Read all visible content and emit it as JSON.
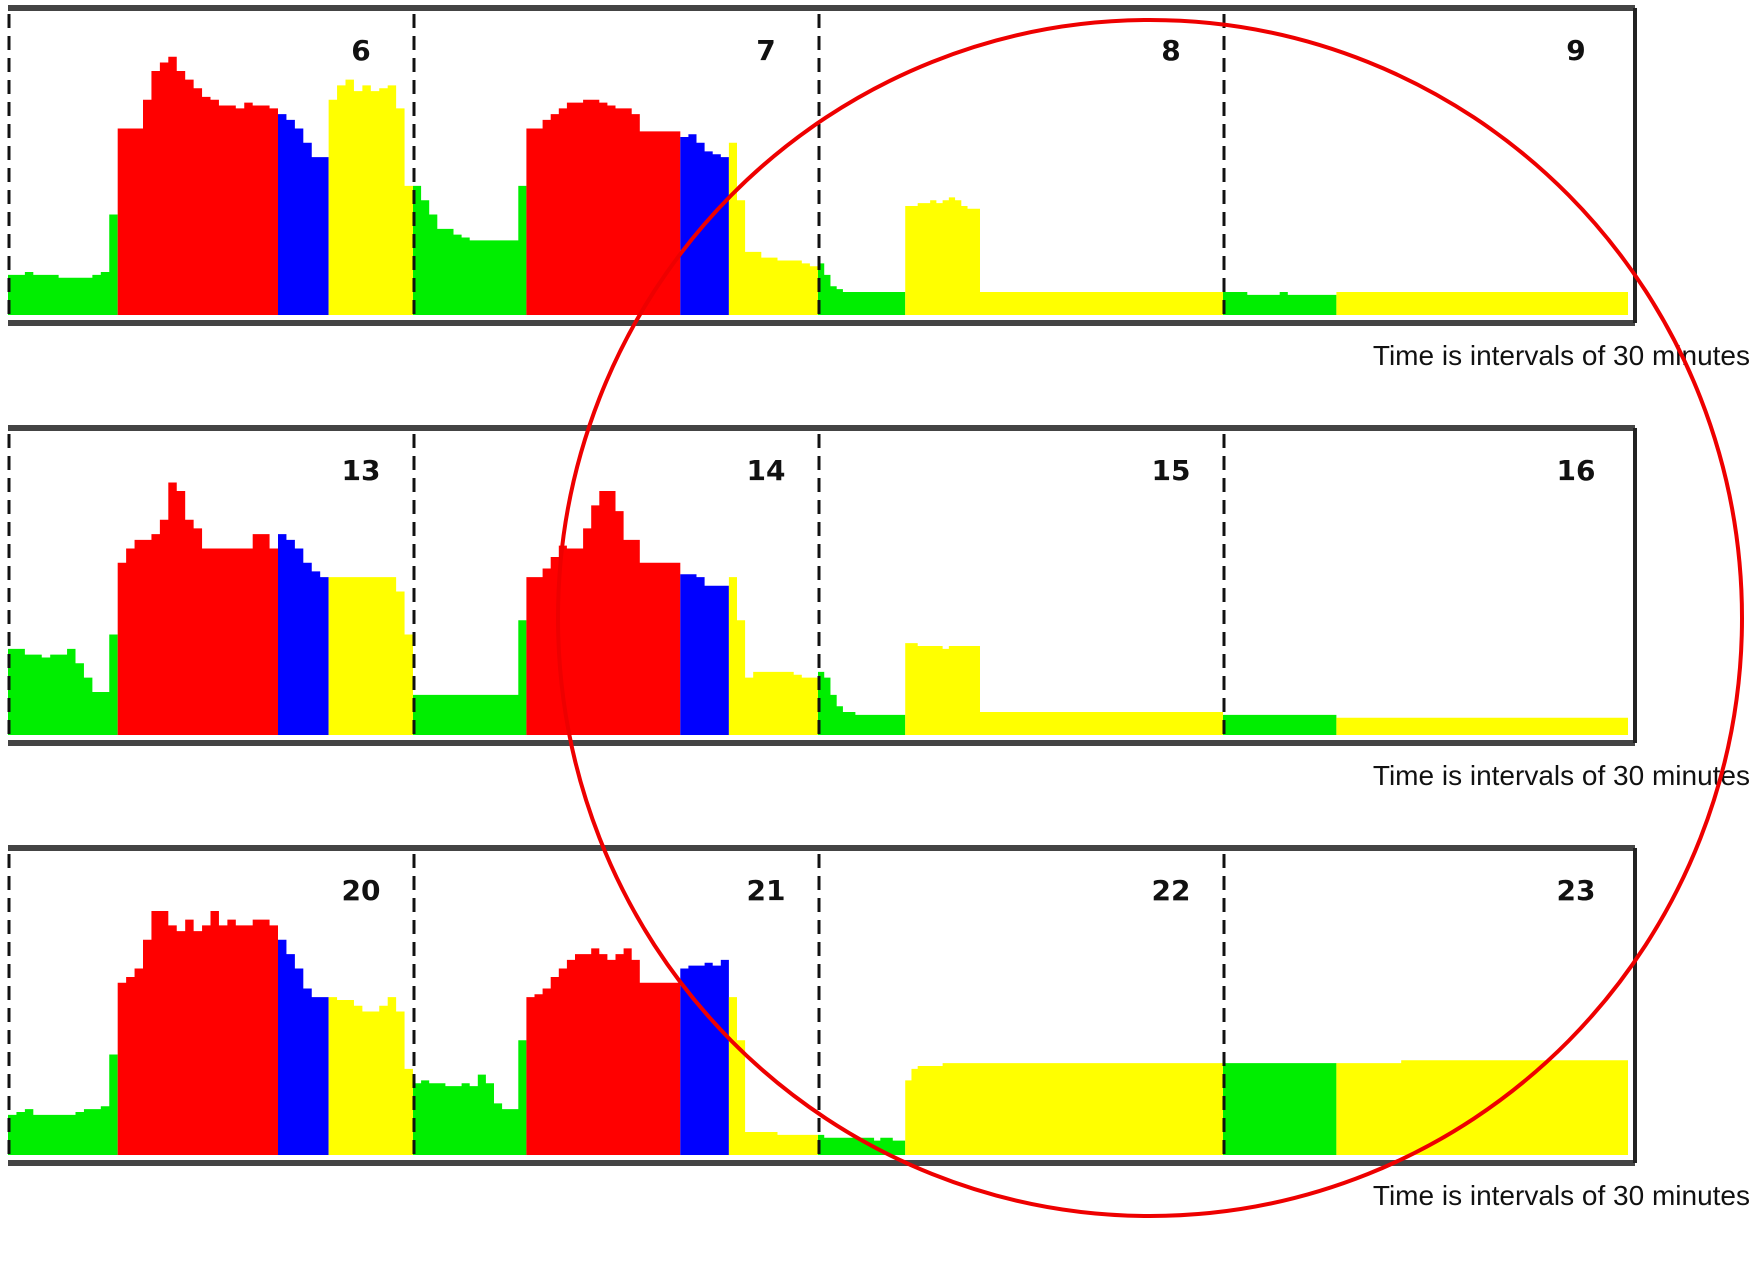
{
  "colors": {
    "green": "#00ee00",
    "red": "#ff0000",
    "blue": "#0000ff",
    "yellow": "#ffff00",
    "frame": "#444444",
    "annotation": "#ee0000"
  },
  "caption": "Time is intervals of 30 minutes",
  "annotation": "red circle highlighting the later days of each week",
  "chart_data": [
    {
      "type": "area",
      "panel_labels": [
        "6",
        "7",
        "8",
        "9"
      ],
      "x_unit": "30-minute intervals",
      "y_range": [
        0,
        100
      ],
      "grid": false,
      "days": [
        {
          "label": "6",
          "segments": [
            {
              "color": "green",
              "values": [
                14,
                14,
                15,
                14,
                14,
                14,
                13,
                13,
                13,
                13,
                14,
                15,
                35
              ]
            },
            {
              "color": "red",
              "values": [
                65,
                65,
                65,
                75,
                85,
                88,
                90,
                85,
                82,
                79,
                76,
                75,
                73,
                73,
                72,
                74,
                73,
                73,
                72
              ]
            },
            {
              "color": "blue",
              "values": [
                70,
                68,
                65,
                60,
                55,
                55
              ]
            },
            {
              "color": "yellow",
              "values": [
                75,
                80,
                82,
                78,
                80,
                78,
                79,
                80,
                72,
                45
              ]
            }
          ]
        },
        {
          "label": "7",
          "segments": [
            {
              "color": "green",
              "values": [
                45,
                40,
                35,
                30,
                30,
                28,
                27,
                26,
                26,
                26,
                26,
                26,
                26,
                45
              ]
            },
            {
              "color": "red",
              "values": [
                65,
                65,
                68,
                70,
                72,
                74,
                74,
                75,
                75,
                74,
                73,
                72,
                72,
                70,
                64,
                64,
                64,
                64,
                64
              ]
            },
            {
              "color": "blue",
              "values": [
                62,
                63,
                60,
                57,
                56,
                55
              ]
            },
            {
              "color": "yellow",
              "values": [
                60,
                40,
                22,
                22,
                20,
                20,
                19,
                19,
                19,
                18,
                17
              ]
            }
          ]
        },
        {
          "label": "8",
          "segments": [
            {
              "color": "green",
              "values": [
                18,
                14,
                10,
                9,
                8,
                8,
                8,
                8,
                8,
                8,
                8,
                8,
                8,
                8
              ]
            },
            {
              "color": "yellow",
              "values": [
                38,
                38,
                39,
                39,
                40,
                39,
                40,
                41,
                40,
                38,
                37,
                37,
                8,
                8,
                8,
                8,
                8,
                8,
                8,
                8,
                8,
                8,
                8,
                8,
                8,
                8,
                8,
                8,
                8,
                8,
                8,
                8,
                8,
                8,
                8,
                8,
                8,
                8,
                8,
                8,
                8,
                8,
                8,
                8,
                8,
                8,
                8,
                8,
                8,
                8,
                8
              ]
            }
          ]
        },
        {
          "label": "9",
          "segments": [
            {
              "color": "green",
              "values": [
                8,
                8,
                8,
                7,
                7,
                7,
                7,
                8,
                7,
                7,
                7,
                7,
                7,
                7
              ]
            },
            {
              "color": "yellow",
              "values": [
                8,
                8,
                8,
                8,
                8,
                8,
                8,
                8,
                8,
                8,
                8,
                8,
                8,
                8,
                8,
                8,
                8,
                8,
                8,
                8,
                8,
                8,
                8,
                8,
                8,
                8,
                8,
                8,
                8,
                8,
                8,
                8,
                8,
                8,
                8,
                8
              ]
            }
          ]
        }
      ]
    },
    {
      "type": "area",
      "panel_labels": [
        "13",
        "14",
        "15",
        "16"
      ],
      "x_unit": "30-minute intervals",
      "y_range": [
        0,
        100
      ],
      "grid": false,
      "days": [
        {
          "label": "13",
          "segments": [
            {
              "color": "green",
              "values": [
                30,
                30,
                28,
                28,
                27,
                28,
                28,
                30,
                25,
                20,
                15,
                15,
                35
              ]
            },
            {
              "color": "red",
              "values": [
                60,
                65,
                68,
                68,
                70,
                75,
                88,
                85,
                75,
                72,
                65,
                65,
                65,
                65,
                65,
                65,
                70,
                70,
                65
              ]
            },
            {
              "color": "blue",
              "values": [
                70,
                68,
                65,
                60,
                57,
                55
              ]
            },
            {
              "color": "yellow",
              "values": [
                55,
                55,
                55,
                55,
                55,
                55,
                55,
                55,
                50,
                35
              ]
            }
          ]
        },
        {
          "label": "14",
          "segments": [
            {
              "color": "green",
              "values": [
                14,
                14,
                14,
                14,
                14,
                14,
                14,
                14,
                14,
                14,
                14,
                14,
                14,
                40
              ]
            },
            {
              "color": "red",
              "values": [
                55,
                55,
                58,
                62,
                66,
                65,
                65,
                72,
                80,
                85,
                85,
                78,
                68,
                68,
                60,
                60,
                60,
                60,
                60
              ]
            },
            {
              "color": "blue",
              "values": [
                56,
                56,
                55,
                52,
                52,
                52
              ]
            },
            {
              "color": "yellow",
              "values": [
                55,
                40,
                20,
                22,
                22,
                22,
                22,
                22,
                21,
                20,
                20
              ]
            }
          ]
        },
        {
          "label": "15",
          "segments": [
            {
              "color": "green",
              "values": [
                22,
                20,
                14,
                10,
                8,
                8,
                7,
                7,
                7,
                7,
                7,
                7,
                7,
                7
              ]
            },
            {
              "color": "yellow",
              "values": [
                32,
                32,
                31,
                31,
                31,
                31,
                30,
                31,
                31,
                31,
                31,
                31,
                8,
                8,
                8,
                8,
                8,
                8,
                8,
                8,
                8,
                8,
                8,
                8,
                8,
                8,
                8,
                8,
                8,
                8,
                8,
                8,
                8,
                8,
                8,
                8,
                8,
                8,
                8,
                8,
                8,
                8,
                8,
                8,
                8,
                8,
                8,
                8,
                8,
                8,
                8
              ]
            }
          ]
        },
        {
          "label": "16",
          "segments": [
            {
              "color": "green",
              "values": [
                7,
                7,
                7,
                7,
                7,
                7,
                7,
                7,
                7,
                7,
                7,
                7,
                7,
                7
              ]
            },
            {
              "color": "yellow",
              "values": [
                6,
                6,
                6,
                6,
                6,
                6,
                6,
                6,
                6,
                6,
                6,
                6,
                6,
                6,
                6,
                6,
                6,
                6,
                6,
                6,
                6,
                6,
                6,
                6,
                6,
                6,
                6,
                6,
                6,
                6,
                6,
                6,
                6,
                6,
                6,
                6
              ]
            }
          ]
        }
      ]
    },
    {
      "type": "area",
      "panel_labels": [
        "20",
        "21",
        "22",
        "23"
      ],
      "x_unit": "30-minute intervals",
      "y_range": [
        0,
        100
      ],
      "grid": false,
      "days": [
        {
          "label": "20",
          "segments": [
            {
              "color": "green",
              "values": [
                14,
                15,
                16,
                14,
                14,
                14,
                14,
                14,
                15,
                16,
                16,
                17,
                35
              ]
            },
            {
              "color": "red",
              "values": [
                60,
                62,
                65,
                75,
                85,
                85,
                80,
                78,
                82,
                78,
                80,
                85,
                80,
                82,
                80,
                80,
                82,
                82,
                80
              ]
            },
            {
              "color": "blue",
              "values": [
                75,
                70,
                65,
                58,
                55,
                55
              ]
            },
            {
              "color": "yellow",
              "values": [
                55,
                54,
                54,
                52,
                50,
                50,
                52,
                55,
                50,
                30
              ]
            }
          ]
        },
        {
          "label": "21",
          "segments": [
            {
              "color": "green",
              "values": [
                25,
                26,
                25,
                25,
                24,
                24,
                25,
                24,
                28,
                25,
                18,
                16,
                16,
                40
              ]
            },
            {
              "color": "red",
              "values": [
                55,
                56,
                58,
                62,
                65,
                68,
                70,
                70,
                72,
                70,
                68,
                70,
                72,
                68,
                60,
                60,
                60,
                60,
                60
              ]
            },
            {
              "color": "blue",
              "values": [
                65,
                66,
                66,
                67,
                66,
                68
              ]
            },
            {
              "color": "yellow",
              "values": [
                55,
                40,
                8,
                8,
                8,
                8,
                7,
                7,
                7,
                7,
                7
              ]
            }
          ]
        },
        {
          "label": "22",
          "segments": [
            {
              "color": "green",
              "values": [
                7,
                6,
                6,
                6,
                6,
                6,
                6,
                6,
                6,
                5,
                6,
                6,
                5,
                5
              ]
            },
            {
              "color": "yellow",
              "values": [
                26,
                30,
                31,
                31,
                31,
                31,
                32,
                32,
                32,
                32,
                32,
                32,
                32,
                32,
                32,
                32,
                32,
                32,
                32,
                32,
                32,
                32,
                32,
                32,
                32,
                32,
                32,
                32,
                32,
                32,
                32,
                32,
                32,
                32,
                32,
                32,
                32,
                32,
                32,
                32,
                32,
                32,
                32,
                32,
                32,
                32,
                32,
                32,
                32,
                32,
                32
              ]
            }
          ]
        },
        {
          "label": "23",
          "segments": [
            {
              "color": "green",
              "values": [
                32,
                32,
                32,
                32,
                32,
                32,
                32,
                32,
                32,
                32,
                32,
                32,
                32,
                32
              ]
            },
            {
              "color": "yellow",
              "values": [
                32,
                32,
                32,
                32,
                32,
                32,
                32,
                32,
                33,
                33,
                33,
                33,
                33,
                33,
                33,
                33,
                33,
                33,
                33,
                33,
                33,
                33,
                33,
                33,
                33,
                33,
                33,
                33,
                33,
                33,
                33,
                33,
                33,
                33,
                33,
                33
              ]
            }
          ]
        }
      ]
    }
  ]
}
